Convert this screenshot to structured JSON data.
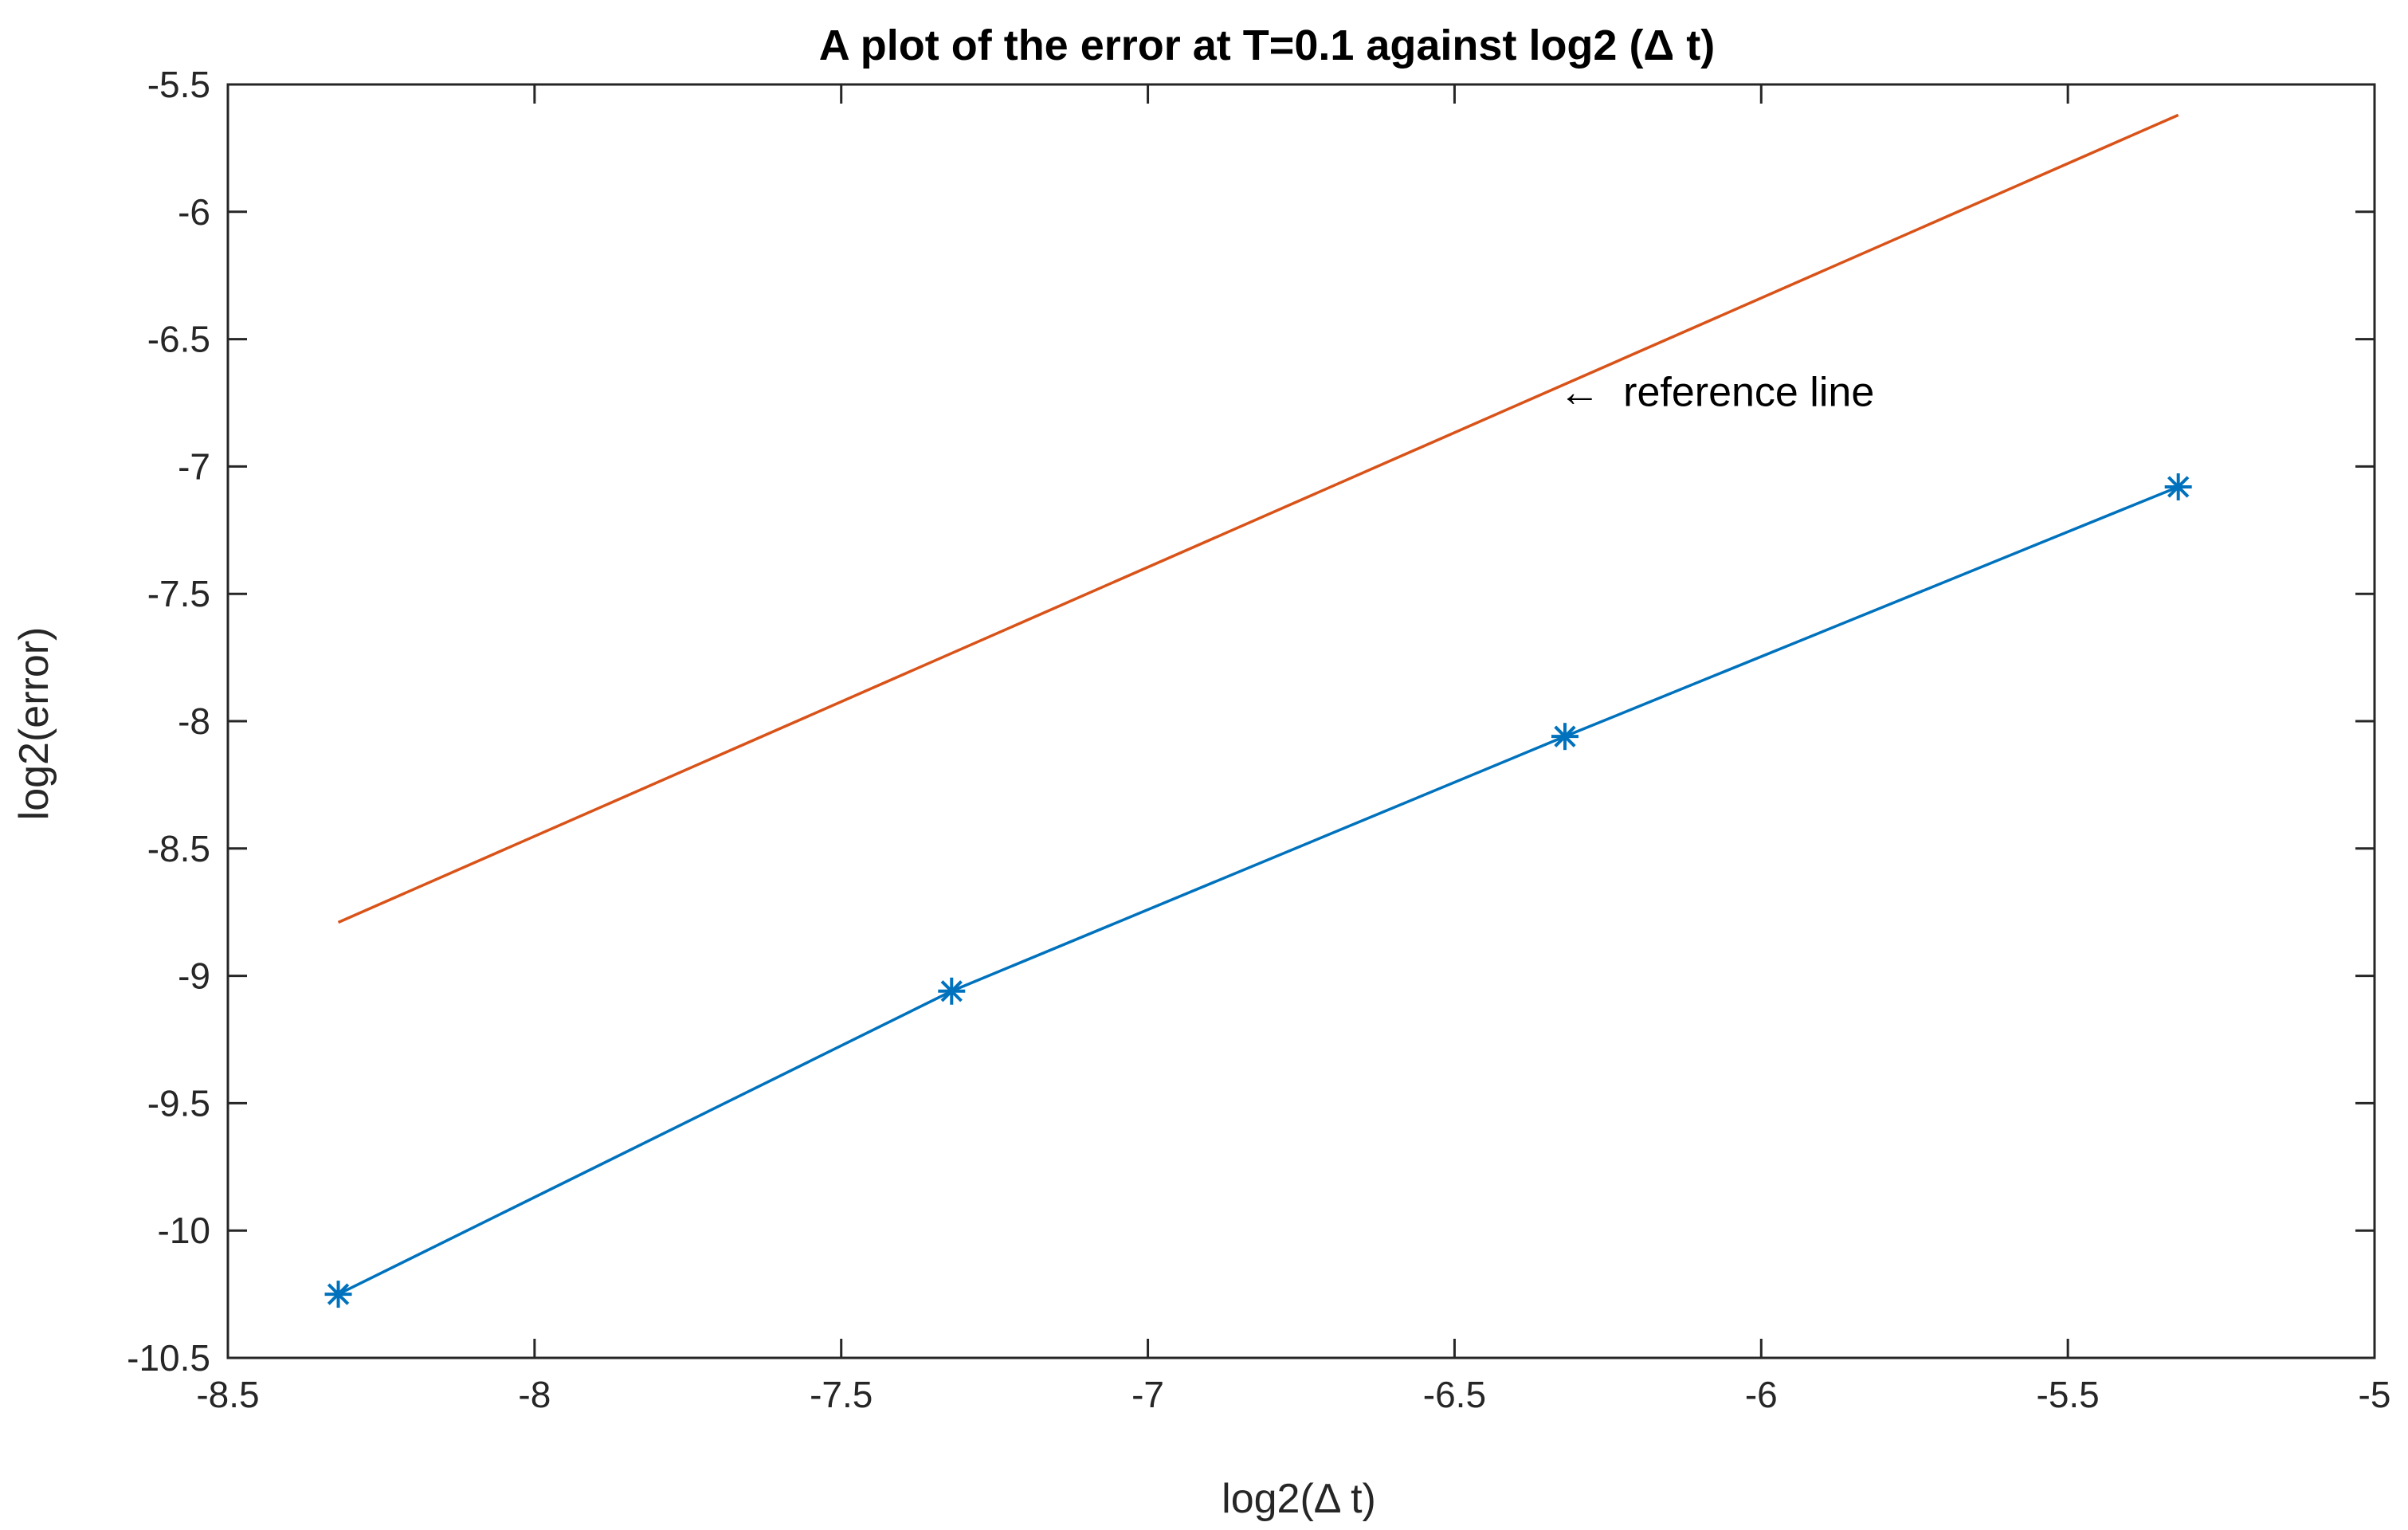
{
  "chart_data": {
    "type": "line",
    "title": "A plot of the error at T=0.1 against log2 (Δ t)",
    "xlabel": "log2(Δ t)",
    "ylabel": "log2(error)",
    "xlim": [
      -8.5,
      -5
    ],
    "ylim": [
      -10.5,
      -5.5
    ],
    "xticks": [
      -8.5,
      -8,
      -7.5,
      -7,
      -6.5,
      -6,
      -5.5,
      -5
    ],
    "xtick_labels": [
      "-8.5",
      "-8",
      "-7.5",
      "-7",
      "-6.5",
      "-6",
      "-5.5",
      "-5"
    ],
    "yticks": [
      -10.5,
      -10,
      -9.5,
      -9,
      -8.5,
      -8,
      -7.5,
      -7,
      -6.5,
      -6,
      -5.5
    ],
    "ytick_labels": [
      "-10.5",
      "-10",
      "-9.5",
      "-9",
      "-8.5",
      "-8",
      "-7.5",
      "-7",
      "-6.5",
      "-6",
      "-5.5"
    ],
    "grid": false,
    "series": [
      {
        "color": "#0072BD",
        "marker": "asterisk",
        "points": [
          {
            "x": -8.32,
            "y": -10.25
          },
          {
            "x": -7.32,
            "y": -9.06
          },
          {
            "x": -6.32,
            "y": -8.06
          },
          {
            "x": -5.32,
            "y": -7.08
          }
        ]
      },
      {
        "color": "#D95319",
        "marker": "none",
        "points": [
          {
            "x": -8.32,
            "y": -8.79
          },
          {
            "x": -5.32,
            "y": -5.62
          }
        ]
      }
    ],
    "annotations": [
      {
        "text": "←  reference line",
        "x": -6.33,
        "y": -6.71
      }
    ]
  }
}
